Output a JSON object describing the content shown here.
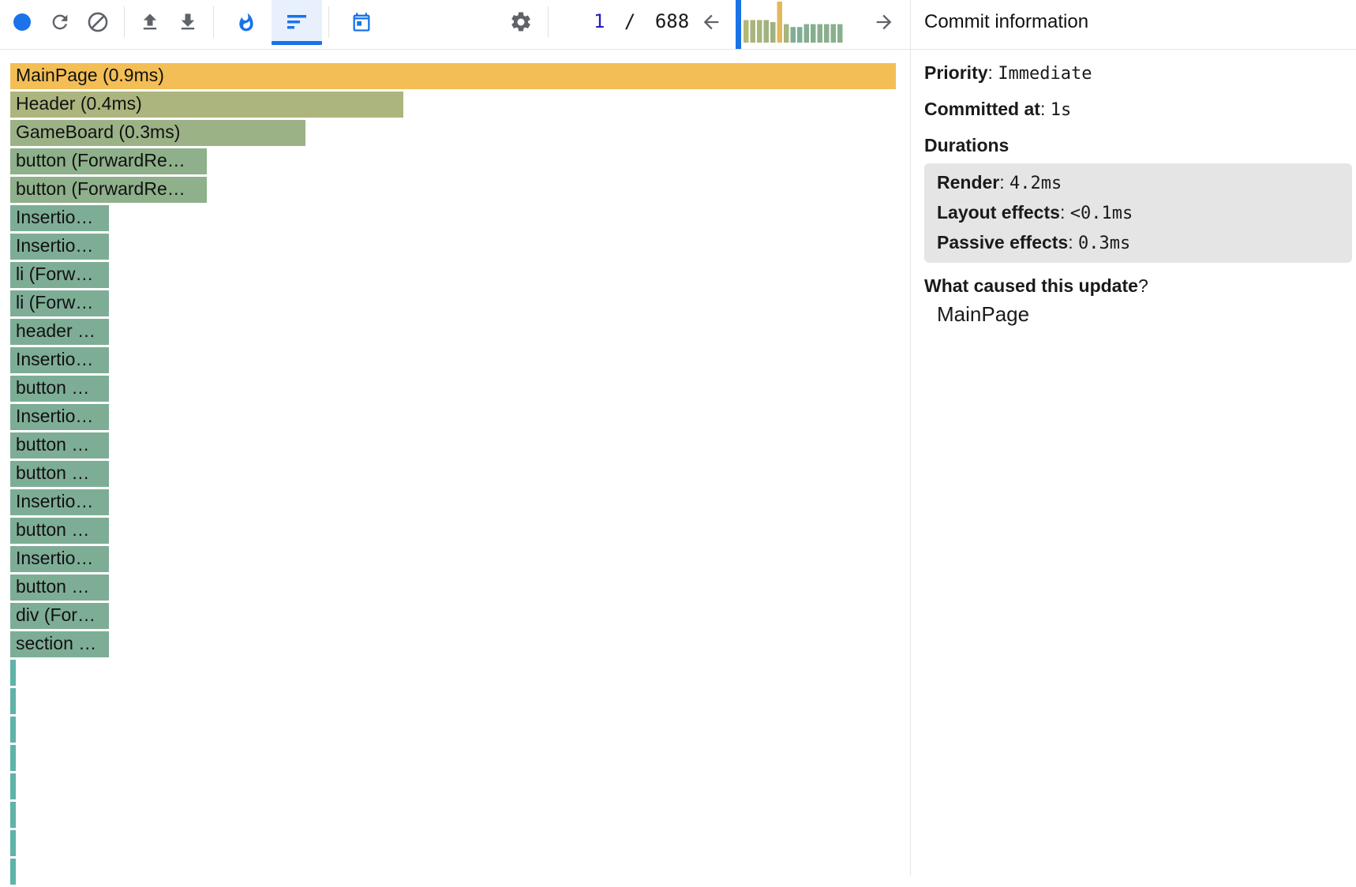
{
  "toolbar": {
    "icons": [
      "record-icon",
      "reload-icon",
      "clear-icon",
      "upload-icon",
      "download-icon",
      "flamegraph-icon",
      "ranked-icon",
      "timeline-icon",
      "gear-icon",
      "arrow-left-icon",
      "arrow-right-icon"
    ],
    "commit_current": "1",
    "commit_separator": "/",
    "commit_total": "688",
    "accent": "#1a73e8",
    "commit_bars": [
      {
        "value": 0.55,
        "color": "#b3b878"
      },
      {
        "value": 0.55,
        "color": "#a8b57c"
      },
      {
        "value": 0.55,
        "color": "#a8b57c"
      },
      {
        "value": 0.55,
        "color": "#9fb27f"
      },
      {
        "value": 0.5,
        "color": "#9fb27f"
      },
      {
        "value": 1.0,
        "color": "#e3b85a"
      },
      {
        "value": 0.45,
        "color": "#a8b57c"
      },
      {
        "value": 0.38,
        "color": "#7fae96"
      },
      {
        "value": 0.38,
        "color": "#7fae96"
      },
      {
        "value": 0.45,
        "color": "#86ad90"
      },
      {
        "value": 0.45,
        "color": "#86ad90"
      },
      {
        "value": 0.45,
        "color": "#8aaf8d"
      },
      {
        "value": 0.45,
        "color": "#8aaf8d"
      },
      {
        "value": 0.45,
        "color": "#8aaf8d"
      },
      {
        "value": 0.45,
        "color": "#8aaf8d"
      }
    ]
  },
  "flamegraph": {
    "bars": [
      {
        "label": "MainPage (0.9ms)",
        "width_fraction": 1.0,
        "color": "#f3be55"
      },
      {
        "label": "Header (0.4ms)",
        "width_fraction": 0.444,
        "color": "#adb57f"
      },
      {
        "label": "GameBoard (0.3ms)",
        "width_fraction": 0.333,
        "color": "#9bb287"
      },
      {
        "label": "button (ForwardRe…",
        "width_fraction": 0.222,
        "color": "#8eb08b"
      },
      {
        "label": "button (ForwardRe…",
        "width_fraction": 0.222,
        "color": "#8eb08b"
      },
      {
        "label": "Insertio…",
        "width_fraction": 0.111,
        "color": "#7ead96"
      },
      {
        "label": "Insertio…",
        "width_fraction": 0.111,
        "color": "#7ead96"
      },
      {
        "label": "li (Forw…",
        "width_fraction": 0.111,
        "color": "#7ead96"
      },
      {
        "label": "li (Forw…",
        "width_fraction": 0.111,
        "color": "#7ead96"
      },
      {
        "label": "header …",
        "width_fraction": 0.111,
        "color": "#7ead96"
      },
      {
        "label": "Insertio…",
        "width_fraction": 0.111,
        "color": "#7ead96"
      },
      {
        "label": "button …",
        "width_fraction": 0.111,
        "color": "#7ead96"
      },
      {
        "label": "Insertio…",
        "width_fraction": 0.111,
        "color": "#7ead96"
      },
      {
        "label": "button …",
        "width_fraction": 0.111,
        "color": "#7ead96"
      },
      {
        "label": "button …",
        "width_fraction": 0.111,
        "color": "#7ead96"
      },
      {
        "label": "Insertio…",
        "width_fraction": 0.111,
        "color": "#7ead96"
      },
      {
        "label": "button …",
        "width_fraction": 0.111,
        "color": "#7ead96"
      },
      {
        "label": "Insertio…",
        "width_fraction": 0.111,
        "color": "#7ead96"
      },
      {
        "label": "button …",
        "width_fraction": 0.111,
        "color": "#7ead96"
      },
      {
        "label": "div (For…",
        "width_fraction": 0.111,
        "color": "#7ead96"
      },
      {
        "label": "section …",
        "width_fraction": 0.111,
        "color": "#7ead96"
      }
    ],
    "thin_bar_count": 8,
    "thin_bar_color": "#5fb3a8"
  },
  "sidebar": {
    "title": "Commit information",
    "priority_label": "Priority",
    "priority_value": "Immediate",
    "committed_label": "Committed at",
    "committed_value": "1s",
    "durations_title": "Durations",
    "render_label": "Render",
    "render_value": "4.2ms",
    "layout_label": "Layout effects",
    "layout_value": "<0.1ms",
    "passive_label": "Passive effects",
    "passive_value": "0.3ms",
    "cause_title_bold": "What caused this update",
    "cause_title_mark": "?",
    "cause_item": "MainPage"
  }
}
